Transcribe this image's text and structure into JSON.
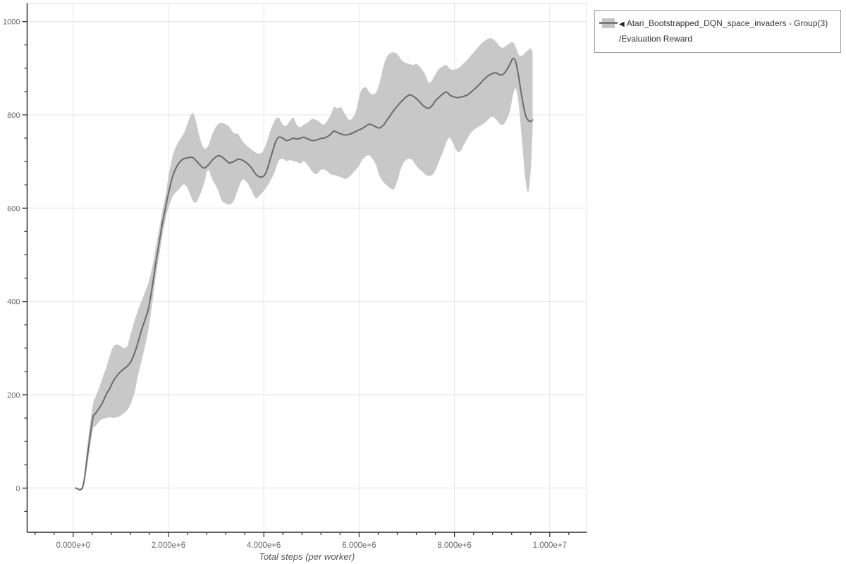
{
  "legend": {
    "marker": "◀",
    "series_name": "Atari_Bootstrapped_DQN_space_invaders - Group(3)",
    "metric_path": "/Evaluation Reward"
  },
  "chart_data": {
    "type": "line",
    "title": "",
    "xlabel": "Total steps (per worker)",
    "ylabel": "",
    "legend_position": "top-right",
    "grid": true,
    "xlim": [
      -1000000,
      10800000
    ],
    "ylim": [
      -95,
      1038
    ],
    "x_minor_step": 400000,
    "y_minor_step": 50,
    "x_ticks": [
      {
        "value": 0,
        "label": "0.000e+0"
      },
      {
        "value": 2000000,
        "label": "2.000e+6"
      },
      {
        "value": 4000000,
        "label": "4.000e+6"
      },
      {
        "value": 6000000,
        "label": "6.000e+6"
      },
      {
        "value": 8000000,
        "label": "8.000e+6"
      },
      {
        "value": 10000000,
        "label": "1.000e+7"
      }
    ],
    "y_ticks": [
      {
        "value": 0,
        "label": "0"
      },
      {
        "value": 200,
        "label": "200"
      },
      {
        "value": 400,
        "label": "400"
      },
      {
        "value": 600,
        "label": "600"
      },
      {
        "value": 800,
        "label": "800"
      },
      {
        "value": 1000,
        "label": "1000"
      }
    ],
    "series": [
      {
        "name": "Atari_Bootstrapped_DQN_space_invaders - Group(3)/Evaluation Reward",
        "line_color": "#6a6a6a",
        "band_color": "#c8c8c8",
        "points_columns": [
          "step",
          "mean",
          "lo",
          "hi"
        ],
        "points": [
          [
            50000,
            0,
            0,
            0
          ],
          [
            200000,
            2,
            0,
            8
          ],
          [
            300000,
            70,
            52,
            95
          ],
          [
            410000,
            148,
            124,
            176
          ],
          [
            470000,
            160,
            133,
            196
          ],
          [
            550000,
            172,
            143,
            216
          ],
          [
            620000,
            184,
            148,
            238
          ],
          [
            700000,
            202,
            150,
            260
          ],
          [
            770000,
            214,
            152,
            284
          ],
          [
            840000,
            229,
            150,
            303
          ],
          [
            920000,
            241,
            152,
            308
          ],
          [
            990000,
            249,
            155,
            305
          ],
          [
            1070000,
            256,
            161,
            300
          ],
          [
            1140000,
            262,
            168,
            306
          ],
          [
            1210000,
            271,
            181,
            331
          ],
          [
            1290000,
            290,
            206,
            360
          ],
          [
            1360000,
            312,
            241,
            381
          ],
          [
            1430000,
            337,
            271,
            400
          ],
          [
            1510000,
            362,
            306,
            421
          ],
          [
            1580000,
            385,
            341,
            440
          ],
          [
            1660000,
            432,
            396,
            474
          ],
          [
            1730000,
            480,
            451,
            514
          ],
          [
            1810000,
            530,
            501,
            559
          ],
          [
            1880000,
            572,
            546,
            599
          ],
          [
            1950000,
            607,
            581,
            634
          ],
          [
            2000000,
            632,
            601,
            669
          ],
          [
            2070000,
            662,
            621,
            704
          ],
          [
            2130000,
            680,
            631,
            726
          ],
          [
            2220000,
            697,
            641,
            744
          ],
          [
            2320000,
            706,
            651,
            760
          ],
          [
            2410000,
            708,
            641,
            784
          ],
          [
            2500000,
            709,
            618,
            804
          ],
          [
            2570000,
            703,
            612,
            789
          ],
          [
            2650000,
            694,
            626,
            754
          ],
          [
            2740000,
            686,
            651,
            729
          ],
          [
            2830000,
            692,
            682,
            733
          ],
          [
            2920000,
            703,
            661,
            759
          ],
          [
            3030000,
            712,
            641,
            779
          ],
          [
            3120000,
            710,
            616,
            783
          ],
          [
            3210000,
            702,
            610,
            779
          ],
          [
            3280000,
            697,
            608,
            774
          ],
          [
            3370000,
            700,
            616,
            761
          ],
          [
            3460000,
            705,
            641,
            759
          ],
          [
            3550000,
            703,
            661,
            744
          ],
          [
            3640000,
            697,
            656,
            734
          ],
          [
            3730000,
            688,
            641,
            727
          ],
          [
            3830000,
            673,
            622,
            719
          ],
          [
            3920000,
            667,
            628,
            717
          ],
          [
            3990000,
            668,
            636,
            724
          ],
          [
            4060000,
            680,
            646,
            741
          ],
          [
            4150000,
            710,
            661,
            769
          ],
          [
            4240000,
            740,
            681,
            789
          ],
          [
            4310000,
            752,
            701,
            794
          ],
          [
            4400000,
            750,
            706,
            779
          ],
          [
            4470000,
            745,
            701,
            777
          ],
          [
            4550000,
            747,
            703,
            787
          ],
          [
            4620000,
            750,
            701,
            794
          ],
          [
            4690000,
            748,
            699,
            779
          ],
          [
            4770000,
            750,
            696,
            774
          ],
          [
            4840000,
            752,
            701,
            779
          ],
          [
            4930000,
            748,
            691,
            784
          ],
          [
            5010000,
            745,
            679,
            791
          ],
          [
            5100000,
            746,
            673,
            789
          ],
          [
            5180000,
            749,
            681,
            784
          ],
          [
            5240000,
            750,
            683,
            779
          ],
          [
            5310000,
            752,
            681,
            784
          ],
          [
            5400000,
            758,
            673,
            799
          ],
          [
            5470000,
            765,
            671,
            816
          ],
          [
            5550000,
            762,
            669,
            814
          ],
          [
            5620000,
            759,
            666,
            816
          ],
          [
            5720000,
            757,
            663,
            799
          ],
          [
            5810000,
            759,
            669,
            789
          ],
          [
            5920000,
            764,
            681,
            804
          ],
          [
            6000000,
            768,
            691,
            837
          ],
          [
            6050000,
            770,
            701,
            854
          ],
          [
            6140000,
            776,
            711,
            859
          ],
          [
            6210000,
            780,
            713,
            849
          ],
          [
            6280000,
            778,
            706,
            844
          ],
          [
            6360000,
            774,
            691,
            849
          ],
          [
            6430000,
            772,
            669,
            869
          ],
          [
            6510000,
            778,
            656,
            904
          ],
          [
            6580000,
            788,
            649,
            924
          ],
          [
            6650000,
            798,
            643,
            932
          ],
          [
            6730000,
            810,
            641,
            934
          ],
          [
            6810000,
            820,
            661,
            929
          ],
          [
            6880000,
            828,
            686,
            919
          ],
          [
            6960000,
            836,
            701,
            912
          ],
          [
            7060000,
            843,
            706,
            909
          ],
          [
            7130000,
            840,
            701,
            907
          ],
          [
            7200000,
            835,
            691,
            909
          ],
          [
            7270000,
            828,
            683,
            904
          ],
          [
            7320000,
            822,
            679,
            897
          ],
          [
            7400000,
            816,
            671,
            884
          ],
          [
            7460000,
            814,
            669,
            869
          ],
          [
            7530000,
            820,
            671,
            874
          ],
          [
            7600000,
            830,
            681,
            887
          ],
          [
            7680000,
            838,
            701,
            899
          ],
          [
            7760000,
            845,
            721,
            904
          ],
          [
            7830000,
            849,
            741,
            907
          ],
          [
            7900000,
            843,
            751,
            899
          ],
          [
            7970000,
            839,
            739,
            897
          ],
          [
            8060000,
            837,
            721,
            899
          ],
          [
            8130000,
            838,
            723,
            904
          ],
          [
            8200000,
            840,
            736,
            911
          ],
          [
            8280000,
            843,
            751,
            919
          ],
          [
            8360000,
            850,
            763,
            929
          ],
          [
            8450000,
            858,
            771,
            939
          ],
          [
            8530000,
            866,
            776,
            949
          ],
          [
            8610000,
            875,
            781,
            957
          ],
          [
            8700000,
            883,
            789,
            963
          ],
          [
            8780000,
            888,
            796,
            964
          ],
          [
            8870000,
            890,
            791,
            957
          ],
          [
            8950000,
            886,
            781,
            947
          ],
          [
            9020000,
            887,
            779,
            944
          ],
          [
            9100000,
            897,
            791,
            949
          ],
          [
            9170000,
            910,
            811,
            954
          ],
          [
            9230000,
            921,
            843,
            955
          ],
          [
            9290000,
            912,
            856,
            944
          ],
          [
            9350000,
            880,
            821,
            929
          ],
          [
            9420000,
            835,
            741,
            927
          ],
          [
            9490000,
            800,
            661,
            934
          ],
          [
            9550000,
            788,
            635,
            939
          ],
          [
            9600000,
            786,
            681,
            942
          ],
          [
            9640000,
            789,
            771,
            934
          ]
        ]
      }
    ]
  }
}
